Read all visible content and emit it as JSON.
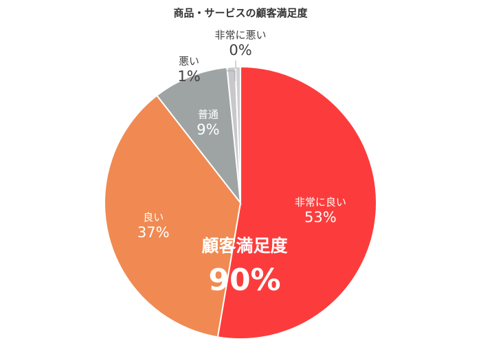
{
  "chart_data": {
    "type": "pie",
    "title": "商品・サービスの顧客満足度",
    "categories": [
      "非常に良い",
      "良い",
      "普通",
      "悪い",
      "非常に悪い"
    ],
    "values": [
      53,
      37,
      9,
      1,
      0
    ],
    "value_labels": [
      "53%",
      "37%",
      "9%",
      "1%",
      "0%"
    ],
    "colors": [
      "#fc3c3c",
      "#f08a52",
      "#9ea4a4",
      "#c8c8cc",
      "#d0d0d4"
    ],
    "start_angle": "12 o'clock",
    "direction": "clockwise",
    "legend": "none",
    "annotation": {
      "label": "顧客満足度",
      "value": "90%"
    }
  }
}
